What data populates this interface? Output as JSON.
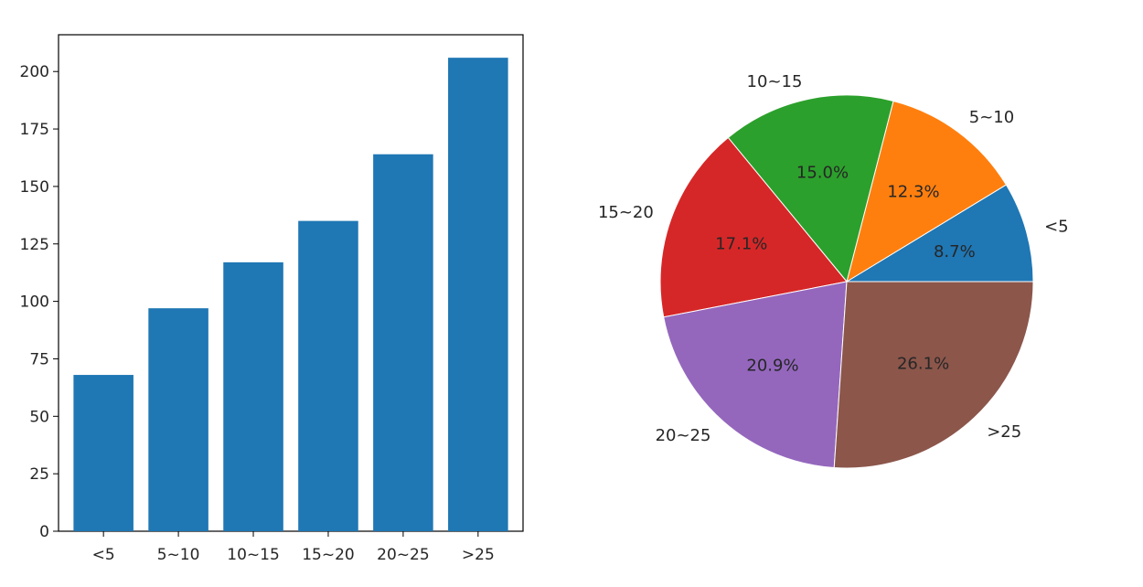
{
  "chart_data": [
    {
      "type": "bar",
      "title": "",
      "xlabel": "",
      "ylabel": "",
      "categories": [
        "<5",
        "5~10",
        "10~15",
        "15~20",
        "20~25",
        ">25"
      ],
      "values": [
        68,
        97,
        117,
        135,
        164,
        206
      ],
      "ylim": [
        0,
        216
      ],
      "yticks": [
        0,
        25,
        50,
        75,
        100,
        125,
        150,
        175,
        200
      ],
      "ytick_labels": [
        "0",
        "25",
        "50",
        "75",
        "100",
        "125",
        "150",
        "175",
        "200"
      ],
      "color": "#1f77b4",
      "grid": false,
      "legend": "none"
    },
    {
      "type": "pie",
      "title": "",
      "labels": [
        "<5",
        "5~10",
        "10~15",
        "15~20",
        "20~25",
        ">25"
      ],
      "values": [
        8.7,
        12.3,
        15.0,
        17.1,
        20.9,
        26.1
      ],
      "pct_labels": [
        "8.7%",
        "12.3%",
        "15.0%",
        "17.1%",
        "20.9%",
        "26.1%"
      ],
      "colors": [
        "#1f77b4",
        "#ff7f0e",
        "#2ca02c",
        "#d62728",
        "#9467bd",
        "#8c564b"
      ],
      "start_angle_deg": 0,
      "direction": "counterclockwise",
      "legend": "none"
    }
  ]
}
